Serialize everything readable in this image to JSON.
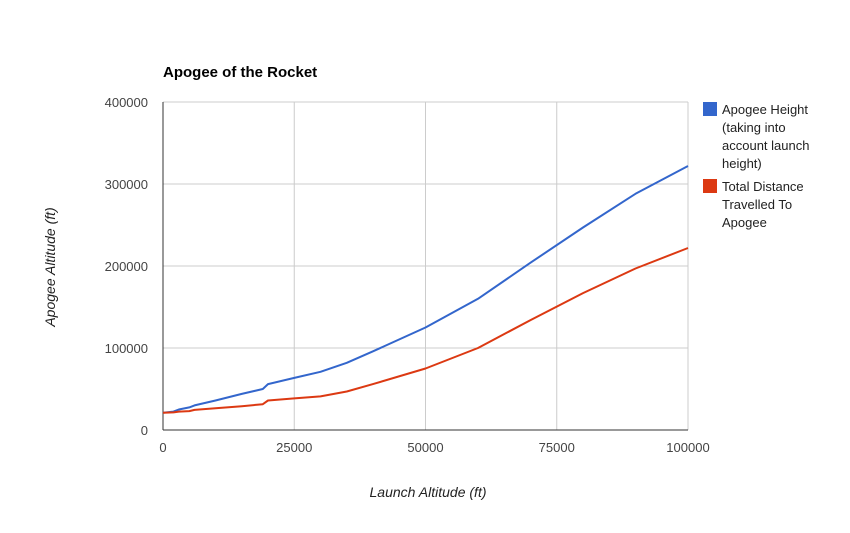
{
  "chart_data": {
    "type": "line",
    "title": "Apogee of the Rocket",
    "xlabel": "Launch Altitude (ft)",
    "ylabel": "Apogee Altitude (ft)",
    "xlim": [
      0,
      100000
    ],
    "ylim": [
      0,
      400000
    ],
    "x_ticks": [
      0,
      25000,
      50000,
      75000,
      100000
    ],
    "y_ticks": [
      0,
      100000,
      200000,
      300000,
      400000
    ],
    "grid": true,
    "legend_position": "right",
    "series": [
      {
        "name": "Apogee Height (taking into account launch height)",
        "legend_lines": [
          "Apogee Height",
          "(taking into",
          "account launch",
          "height)"
        ],
        "color": "#3366cc",
        "x": [
          0,
          2000,
          3000,
          5000,
          6000,
          10000,
          15000,
          19000,
          20000,
          25000,
          30000,
          35000,
          40000,
          50000,
          60000,
          70000,
          80000,
          90000,
          100000
        ],
        "y": [
          21000,
          22500,
          25000,
          27500,
          30000,
          36000,
          44000,
          50000,
          56000,
          63500,
          71000,
          82000,
          96000,
          125000,
          160000,
          204000,
          247000,
          288000,
          322000
        ]
      },
      {
        "name": "Total Distance Travelled To Apogee",
        "legend_lines": [
          "Total Distance",
          "Travelled To",
          "Apogee"
        ],
        "color": "#dc3912",
        "x": [
          0,
          2000,
          3000,
          5000,
          6000,
          10000,
          15000,
          19000,
          20000,
          25000,
          30000,
          35000,
          40000,
          50000,
          60000,
          70000,
          80000,
          90000,
          100000
        ],
        "y": [
          21000,
          21500,
          22500,
          23000,
          24500,
          26500,
          29000,
          31500,
          36000,
          38500,
          41000,
          47000,
          56000,
          75000,
          100000,
          134000,
          167000,
          197000,
          222000
        ]
      }
    ]
  }
}
